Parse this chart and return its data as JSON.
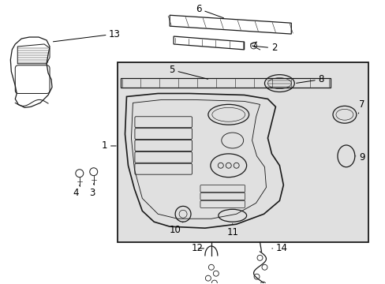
{
  "bg_color": "#ffffff",
  "panel_bg": "#e0e0e0",
  "line_color": "#1a1a1a",
  "label_color": "#000000",
  "fig_w": 4.89,
  "fig_h": 3.6,
  "dpi": 100
}
